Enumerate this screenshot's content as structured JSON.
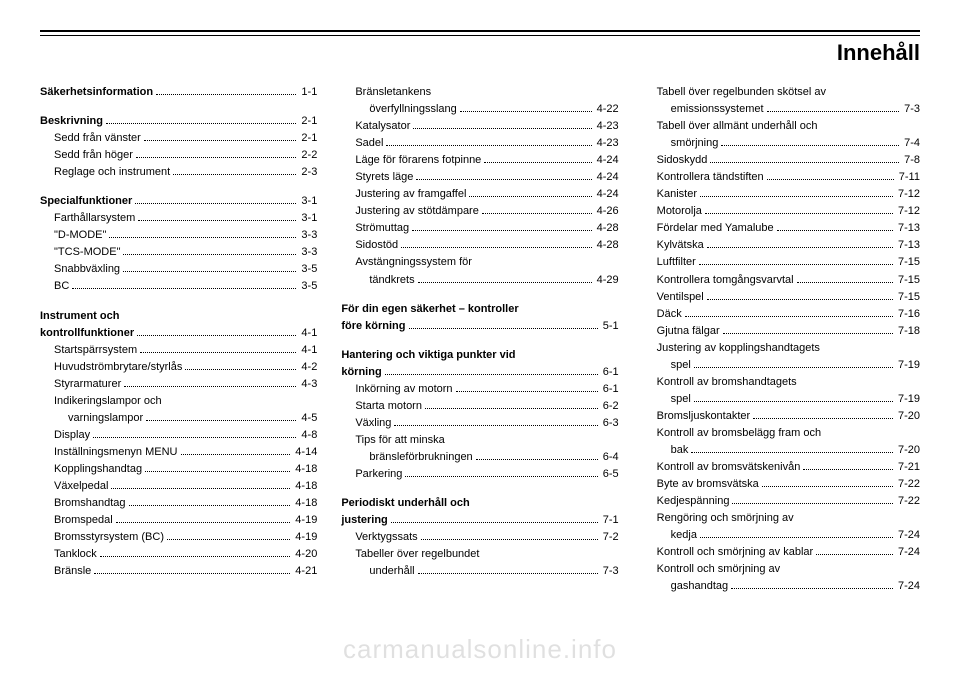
{
  "title": "Innehåll",
  "watermark": "carmanualsonline.info",
  "columns": [
    {
      "groups": [
        {
          "lines": [
            {
              "label": "Säkerhetsinformation",
              "page": "1-1",
              "bold": true
            }
          ]
        },
        {
          "lines": [
            {
              "label": "Beskrivning",
              "page": "2-1",
              "bold": true
            },
            {
              "label": "Sedd från vänster",
              "page": "2-1",
              "indent": 1
            },
            {
              "label": "Sedd från höger",
              "page": "2-2",
              "indent": 1
            },
            {
              "label": "Reglage och instrument",
              "page": "2-3",
              "indent": 1
            }
          ]
        },
        {
          "lines": [
            {
              "label": "Specialfunktioner",
              "page": "3-1",
              "bold": true
            },
            {
              "label": "Farthållarsystem",
              "page": "3-1",
              "indent": 1
            },
            {
              "label": "\"D-MODE\"",
              "page": "3-3",
              "indent": 1
            },
            {
              "label": "\"TCS-MODE\"",
              "page": "3-3",
              "indent": 1
            },
            {
              "label": "Snabbväxling",
              "page": "3-5",
              "indent": 1
            },
            {
              "label": "BC",
              "page": "3-5",
              "indent": 1
            }
          ]
        },
        {
          "lines": [
            {
              "label": "Instrument och",
              "heading": true
            },
            {
              "label": "kontrollfunktioner",
              "page": "4-1",
              "bold": true
            },
            {
              "label": "Startspärrsystem",
              "page": "4-1",
              "indent": 1
            },
            {
              "label": "Huvudströmbrytare/styrlås",
              "page": "4-2",
              "indent": 1
            },
            {
              "label": "Styrarmaturer",
              "page": "4-3",
              "indent": 1
            },
            {
              "label": "Indikeringslampor och",
              "indent": 1,
              "nodots": true
            },
            {
              "label": "varningslampor",
              "page": "4-5",
              "indent": 2
            },
            {
              "label": "Display",
              "page": "4-8",
              "indent": 1
            },
            {
              "label": "Inställningsmenyn MENU",
              "page": "4-14",
              "indent": 1
            },
            {
              "label": "Kopplingshandtag",
              "page": "4-18",
              "indent": 1
            },
            {
              "label": "Växelpedal",
              "page": "4-18",
              "indent": 1
            },
            {
              "label": "Bromshandtag",
              "page": "4-18",
              "indent": 1
            },
            {
              "label": "Bromspedal",
              "page": "4-19",
              "indent": 1
            },
            {
              "label": "Bromsstyrsystem (BC)",
              "page": "4-19",
              "indent": 1
            },
            {
              "label": "Tanklock",
              "page": "4-20",
              "indent": 1
            },
            {
              "label": "Bränsle",
              "page": "4-21",
              "indent": 1
            }
          ]
        }
      ]
    },
    {
      "groups": [
        {
          "lines": [
            {
              "label": "Bränsletankens",
              "indent": 1,
              "nodots": true
            },
            {
              "label": "överfyllningsslang",
              "page": "4-22",
              "indent": 2
            },
            {
              "label": "Katalysator",
              "page": "4-23",
              "indent": 1
            },
            {
              "label": "Sadel",
              "page": "4-23",
              "indent": 1
            },
            {
              "label": "Läge för förarens fotpinne",
              "page": "4-24",
              "indent": 1
            },
            {
              "label": "Styrets läge",
              "page": "4-24",
              "indent": 1
            },
            {
              "label": "Justering av framgaffel",
              "page": "4-24",
              "indent": 1
            },
            {
              "label": "Justering av stötdämpare",
              "page": "4-26",
              "indent": 1
            },
            {
              "label": "Strömuttag",
              "page": "4-28",
              "indent": 1
            },
            {
              "label": "Sidostöd",
              "page": "4-28",
              "indent": 1
            },
            {
              "label": "Avstängningssystem för",
              "indent": 1,
              "nodots": true
            },
            {
              "label": "tändkrets",
              "page": "4-29",
              "indent": 2
            }
          ]
        },
        {
          "lines": [
            {
              "label": "För din egen säkerhet – kontroller",
              "heading": true
            },
            {
              "label": "före körning",
              "page": "5-1",
              "bold": true
            }
          ]
        },
        {
          "lines": [
            {
              "label": "Hantering och viktiga punkter vid",
              "heading": true
            },
            {
              "label": "körning",
              "page": "6-1",
              "bold": true
            },
            {
              "label": "Inkörning av motorn",
              "page": "6-1",
              "indent": 1
            },
            {
              "label": "Starta motorn",
              "page": "6-2",
              "indent": 1
            },
            {
              "label": "Växling",
              "page": "6-3",
              "indent": 1
            },
            {
              "label": "Tips för att minska",
              "indent": 1,
              "nodots": true
            },
            {
              "label": "bränsleförbrukningen",
              "page": "6-4",
              "indent": 2
            },
            {
              "label": "Parkering",
              "page": "6-5",
              "indent": 1
            }
          ]
        },
        {
          "lines": [
            {
              "label": "Periodiskt underhåll och",
              "heading": true
            },
            {
              "label": "justering",
              "page": "7-1",
              "bold": true
            },
            {
              "label": "Verktygssats",
              "page": "7-2",
              "indent": 1
            },
            {
              "label": "Tabeller över regelbundet",
              "indent": 1,
              "nodots": true
            },
            {
              "label": "underhåll",
              "page": "7-3",
              "indent": 2
            }
          ]
        }
      ]
    },
    {
      "groups": [
        {
          "lines": [
            {
              "label": "Tabell över regelbunden skötsel av",
              "indent": 1,
              "nodots": true
            },
            {
              "label": "emissionssystemet",
              "page": "7-3",
              "indent": 2
            },
            {
              "label": "Tabell över allmänt underhåll och",
              "indent": 1,
              "nodots": true
            },
            {
              "label": "smörjning",
              "page": "7-4",
              "indent": 2
            },
            {
              "label": "Sidoskydd",
              "page": "7-8",
              "indent": 1
            },
            {
              "label": "Kontrollera tändstiften",
              "page": "7-11",
              "indent": 1
            },
            {
              "label": "Kanister",
              "page": "7-12",
              "indent": 1
            },
            {
              "label": "Motorolja",
              "page": "7-12",
              "indent": 1
            },
            {
              "label": "Fördelar med Yamalube",
              "page": "7-13",
              "indent": 1
            },
            {
              "label": "Kylvätska",
              "page": "7-13",
              "indent": 1
            },
            {
              "label": "Luftfilter",
              "page": "7-15",
              "indent": 1
            },
            {
              "label": "Kontrollera tomgångsvarvtal",
              "page": "7-15",
              "indent": 1
            },
            {
              "label": "Ventilspel",
              "page": "7-15",
              "indent": 1
            },
            {
              "label": "Däck",
              "page": "7-16",
              "indent": 1
            },
            {
              "label": "Gjutna fälgar",
              "page": "7-18",
              "indent": 1
            },
            {
              "label": "Justering av kopplingshandtagets",
              "indent": 1,
              "nodots": true
            },
            {
              "label": "spel",
              "page": "7-19",
              "indent": 2
            },
            {
              "label": "Kontroll av bromshandtagets",
              "indent": 1,
              "nodots": true
            },
            {
              "label": "spel",
              "page": "7-19",
              "indent": 2
            },
            {
              "label": "Bromsljuskontakter",
              "page": "7-20",
              "indent": 1
            },
            {
              "label": "Kontroll av bromsbelägg fram och",
              "indent": 1,
              "nodots": true
            },
            {
              "label": "bak",
              "page": "7-20",
              "indent": 2
            },
            {
              "label": "Kontroll av bromsvätskenivån",
              "page": "7-21",
              "indent": 1
            },
            {
              "label": "Byte av bromsvätska",
              "page": "7-22",
              "indent": 1
            },
            {
              "label": "Kedjespänning",
              "page": "7-22",
              "indent": 1
            },
            {
              "label": "Rengöring och smörjning av",
              "indent": 1,
              "nodots": true
            },
            {
              "label": "kedja",
              "page": "7-24",
              "indent": 2
            },
            {
              "label": "Kontroll och smörjning av kablar",
              "page": "7-24",
              "indent": 1
            },
            {
              "label": "Kontroll och smörjning av",
              "indent": 1,
              "nodots": true
            },
            {
              "label": "gashandtag",
              "page": "7-24",
              "indent": 2
            }
          ]
        }
      ]
    }
  ]
}
